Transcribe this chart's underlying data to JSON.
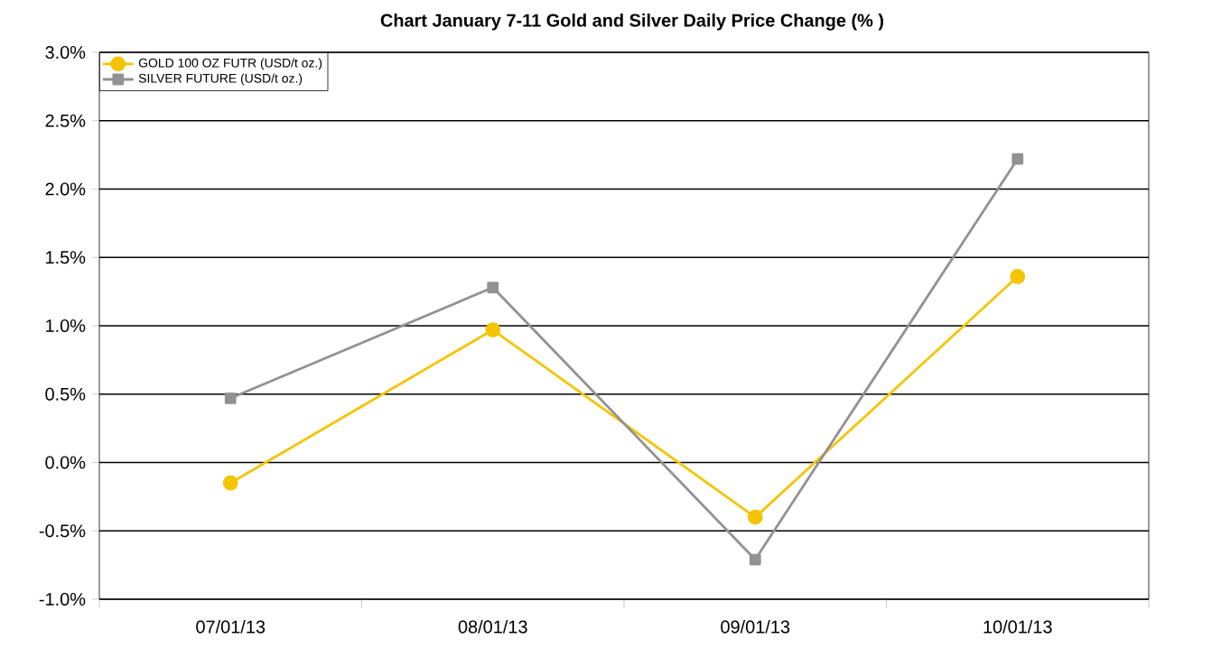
{
  "chart_data": {
    "type": "line",
    "title": "Chart  January 7-11  Gold and Silver Daily Price Change (% )",
    "categories": [
      "07/01/13",
      "08/01/13",
      "09/01/13",
      "10/01/13"
    ],
    "series": [
      {
        "name": "GOLD 100 OZ FUTR (USD/t oz.)",
        "color": "#f5c400",
        "marker": "circle",
        "values": [
          -0.15,
          0.97,
          -0.4,
          1.36
        ]
      },
      {
        "name": "SILVER FUTURE (USD/t oz.)",
        "color": "#929292",
        "marker": "square",
        "values": [
          0.47,
          1.28,
          -0.71,
          2.22
        ]
      }
    ],
    "ylim": [
      -1.0,
      3.0
    ],
    "yticks": [
      {
        "value": -1.0,
        "label": "-1.0%"
      },
      {
        "value": -0.5,
        "label": "-0.5%"
      },
      {
        "value": 0.0,
        "label": "0.0%"
      },
      {
        "value": 0.5,
        "label": "0.5%"
      },
      {
        "value": 1.0,
        "label": "1.0%"
      },
      {
        "value": 1.5,
        "label": "1.5%"
      },
      {
        "value": 2.0,
        "label": "2.0%"
      },
      {
        "value": 2.5,
        "label": "2.5%"
      },
      {
        "value": 3.0,
        "label": "3.0%"
      }
    ],
    "grid": "y",
    "legend": "top left",
    "line_style": "solid"
  }
}
